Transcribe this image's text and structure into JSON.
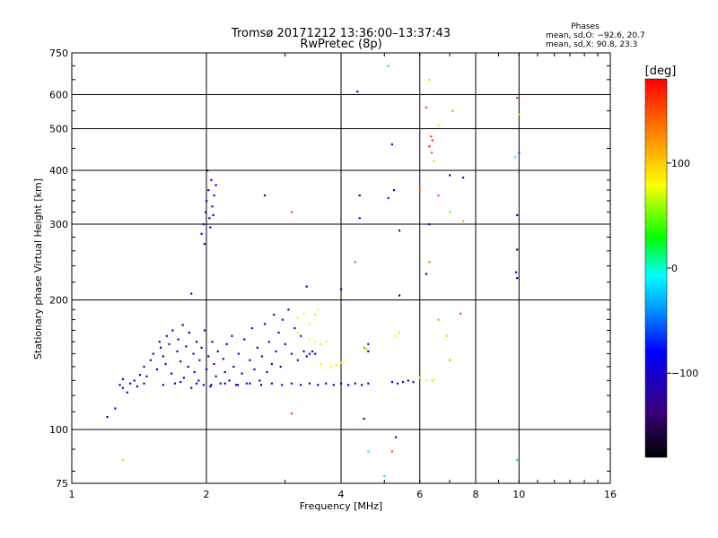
{
  "chart_data": {
    "type": "scatter",
    "title": "Tromsø 20171212 13:36:00–13:37:43",
    "subtitle": "RwPretec (8p)",
    "xlabel": "Frequency [MHz]",
    "ylabel": "Stationary phase Virtual Height [km]",
    "x_scale": "log",
    "y_scale": "log",
    "xlim": [
      1,
      16
    ],
    "ylim": [
      75,
      750
    ],
    "x_ticks": [
      1,
      2,
      4,
      6,
      8,
      10,
      16
    ],
    "x_tick_labels": [
      "1",
      "2",
      "4",
      "6",
      "8",
      "10",
      "16"
    ],
    "y_ticks": [
      75,
      100,
      200,
      300,
      400,
      500,
      600,
      750
    ],
    "y_tick_labels": [
      "75",
      "100",
      "200",
      "300",
      "400",
      "500",
      "600",
      "750"
    ],
    "grid": true,
    "phase_info": {
      "heading": "Phases",
      "line1": "mean, sd,O: −92.6, 20.7",
      "line2": "mean, sd,X:  90.8, 23.3"
    },
    "colorbar": {
      "label": "[deg]",
      "range": [
        -180,
        180
      ],
      "ticks": [
        100,
        0,
        -100
      ],
      "tick_labels": [
        "100",
        "0",
        "−100"
      ]
    },
    "colormap_stops": [
      "#000000",
      "#3a007a",
      "#0000ff",
      "#00a0ff",
      "#00ffff",
      "#00ff00",
      "#ffff00",
      "#ff8000",
      "#ff0000"
    ],
    "points": [
      [
        1.28,
        127,
        -110
      ],
      [
        1.3,
        125,
        -100
      ],
      [
        1.33,
        122,
        -95
      ],
      [
        1.35,
        128,
        -105
      ],
      [
        1.38,
        130,
        -90
      ],
      [
        1.4,
        126,
        -110
      ],
      [
        1.42,
        134,
        -100
      ],
      [
        1.45,
        140,
        -95
      ],
      [
        1.47,
        133,
        -105
      ],
      [
        1.5,
        145,
        -100
      ],
      [
        1.52,
        150,
        -110
      ],
      [
        1.55,
        138,
        -95
      ],
      [
        1.57,
        160,
        -100
      ],
      [
        1.58,
        155,
        -105
      ],
      [
        1.6,
        148,
        -115
      ],
      [
        1.62,
        142,
        -95
      ],
      [
        1.63,
        165,
        -100
      ],
      [
        1.65,
        158,
        -90
      ],
      [
        1.67,
        135,
        -110
      ],
      [
        1.68,
        170,
        -100
      ],
      [
        1.7,
        128,
        -95
      ],
      [
        1.72,
        152,
        -105
      ],
      [
        1.73,
        162,
        -100
      ],
      [
        1.75,
        144,
        -110
      ],
      [
        1.77,
        175,
        -95
      ],
      [
        1.78,
        132,
        -100
      ],
      [
        1.8,
        156,
        -105
      ],
      [
        1.82,
        140,
        -95
      ],
      [
        1.83,
        168,
        -100
      ],
      [
        1.85,
        125,
        -110
      ],
      [
        1.87,
        150,
        -100
      ],
      [
        1.88,
        136,
        -95
      ],
      [
        1.9,
        160,
        -105
      ],
      [
        1.92,
        130,
        -100
      ],
      [
        1.93,
        145,
        -110
      ],
      [
        1.95,
        155,
        -95
      ],
      [
        1.97,
        127,
        -100
      ],
      [
        1.98,
        170,
        -105
      ],
      [
        2.0,
        138,
        -95
      ],
      [
        2.02,
        148,
        -100
      ],
      [
        2.04,
        126,
        -110
      ],
      [
        2.06,
        160,
        -100
      ],
      [
        2.08,
        142,
        -95
      ],
      [
        2.1,
        133,
        -105
      ],
      [
        2.12,
        152,
        -100
      ],
      [
        2.15,
        128,
        -110
      ],
      [
        2.18,
        146,
        -95
      ],
      [
        2.2,
        136,
        -100
      ],
      [
        2.22,
        158,
        -105
      ],
      [
        2.25,
        130,
        -100
      ],
      [
        2.28,
        165,
        -95
      ],
      [
        2.3,
        140,
        -110
      ],
      [
        2.33,
        127,
        -100
      ],
      [
        2.36,
        150,
        -95
      ],
      [
        2.4,
        135,
        -105
      ],
      [
        2.43,
        162,
        -100
      ],
      [
        2.46,
        128,
        -95
      ],
      [
        2.5,
        145,
        -110
      ],
      [
        2.53,
        172,
        -100
      ],
      [
        2.56,
        138,
        -95
      ],
      [
        2.6,
        155,
        -105
      ],
      [
        2.63,
        130,
        -100
      ],
      [
        2.66,
        148,
        -95
      ],
      [
        2.7,
        176,
        -110
      ],
      [
        2.73,
        136,
        -100
      ],
      [
        2.76,
        160,
        -95
      ],
      [
        2.8,
        142,
        -105
      ],
      [
        2.83,
        185,
        -100
      ],
      [
        2.86,
        152,
        -95
      ],
      [
        2.9,
        168,
        -110
      ],
      [
        2.93,
        140,
        -100
      ],
      [
        2.96,
        180,
        -95
      ],
      [
        3.0,
        158,
        -105
      ],
      [
        3.05,
        190,
        -100
      ],
      [
        3.1,
        150,
        -95
      ],
      [
        3.15,
        172,
        -110
      ],
      [
        3.2,
        145,
        -100
      ],
      [
        3.25,
        165,
        -95
      ],
      [
        3.3,
        152,
        -105
      ],
      [
        3.35,
        148,
        -100
      ],
      [
        3.4,
        150,
        -95
      ],
      [
        3.45,
        152,
        -110
      ],
      [
        3.5,
        150,
        -100
      ],
      [
        1.3,
        131,
        -80
      ],
      [
        1.45,
        128,
        -85
      ],
      [
        1.6,
        127,
        -80
      ],
      [
        1.75,
        129,
        -85
      ],
      [
        1.9,
        128,
        -80
      ],
      [
        2.05,
        127,
        -85
      ],
      [
        2.2,
        128,
        -80
      ],
      [
        2.35,
        127,
        -85
      ],
      [
        2.5,
        128,
        -80
      ],
      [
        2.65,
        127,
        -85
      ],
      [
        2.8,
        128,
        -80
      ],
      [
        2.95,
        127,
        -85
      ],
      [
        3.1,
        128,
        -80
      ],
      [
        3.25,
        127,
        -85
      ],
      [
        3.4,
        128,
        -80
      ],
      [
        3.55,
        127,
        -85
      ],
      [
        3.7,
        128,
        -80
      ],
      [
        3.85,
        127,
        -85
      ],
      [
        4.0,
        128,
        -80
      ],
      [
        4.15,
        127,
        -85
      ],
      [
        4.3,
        128,
        -80
      ],
      [
        4.45,
        127,
        -85
      ],
      [
        4.6,
        128,
        -80
      ],
      [
        5.2,
        129,
        -85
      ],
      [
        5.35,
        128,
        -80
      ],
      [
        5.5,
        129,
        -85
      ],
      [
        5.65,
        130,
        -80
      ],
      [
        5.8,
        129,
        -75
      ],
      [
        1.95,
        285,
        -95
      ],
      [
        1.97,
        300,
        -100
      ],
      [
        1.99,
        320,
        -105
      ],
      [
        2.0,
        340,
        -95
      ],
      [
        2.02,
        360,
        -100
      ],
      [
        2.03,
        310,
        -105
      ],
      [
        2.05,
        380,
        -95
      ],
      [
        2.06,
        330,
        -100
      ],
      [
        2.08,
        350,
        -110
      ],
      [
        2.1,
        370,
        -95
      ],
      [
        1.98,
        270,
        -100
      ],
      [
        2.01,
        400,
        -105
      ],
      [
        2.04,
        295,
        -95
      ],
      [
        2.07,
        315,
        -100
      ],
      [
        3.2,
        182,
        70
      ],
      [
        3.3,
        186,
        75
      ],
      [
        3.4,
        176,
        80
      ],
      [
        3.5,
        185,
        70
      ],
      [
        3.55,
        190,
        75
      ],
      [
        3.2,
        168,
        80
      ],
      [
        3.4,
        162,
        85
      ],
      [
        3.5,
        160,
        80
      ],
      [
        3.6,
        158,
        70
      ],
      [
        3.7,
        160,
        75
      ],
      [
        3.6,
        142,
        75
      ],
      [
        3.8,
        140,
        80
      ],
      [
        3.9,
        141,
        70
      ],
      [
        4.0,
        143,
        75
      ],
      [
        4.1,
        144,
        80
      ],
      [
        4.5,
        155,
        30
      ],
      [
        4.55,
        154,
        110
      ],
      [
        4.6,
        152,
        -90
      ],
      [
        4.6,
        158,
        -85
      ],
      [
        5.3,
        165,
        80
      ],
      [
        5.4,
        168,
        70
      ],
      [
        6.0,
        132,
        80
      ],
      [
        6.2,
        130,
        75
      ],
      [
        6.4,
        130,
        60
      ],
      [
        6.5,
        131,
        80
      ],
      [
        4.35,
        610,
        -110
      ],
      [
        5.1,
        700,
        -20
      ],
      [
        6.3,
        650,
        100
      ],
      [
        6.2,
        560,
        150
      ],
      [
        6.6,
        510,
        90
      ],
      [
        7.1,
        550,
        120
      ],
      [
        9.9,
        590,
        160
      ],
      [
        10.0,
        540,
        110
      ],
      [
        6.35,
        480,
        150
      ],
      [
        6.4,
        470,
        160
      ],
      [
        6.3,
        455,
        170
      ],
      [
        6.38,
        440,
        140
      ],
      [
        6.45,
        420,
        90
      ],
      [
        9.8,
        430,
        -10
      ],
      [
        10.0,
        440,
        -60
      ],
      [
        5.2,
        460,
        -100
      ],
      [
        7.0,
        390,
        -110
      ],
      [
        7.5,
        385,
        -90
      ],
      [
        6.0,
        360,
        140
      ],
      [
        6.6,
        350,
        150
      ],
      [
        7.0,
        320,
        50
      ],
      [
        7.5,
        305,
        120
      ],
      [
        9.9,
        315,
        -100
      ],
      [
        4.4,
        350,
        -80
      ],
      [
        4.4,
        310,
        -90
      ],
      [
        5.1,
        345,
        -70
      ],
      [
        5.25,
        360,
        -100
      ],
      [
        6.3,
        300,
        -110
      ],
      [
        2.7,
        350,
        -100
      ],
      [
        3.1,
        320,
        150
      ],
      [
        5.4,
        290,
        -100
      ],
      [
        4.3,
        245,
        140
      ],
      [
        6.3,
        245,
        130
      ],
      [
        6.2,
        230,
        -110
      ],
      [
        9.9,
        262,
        -100
      ],
      [
        9.85,
        232,
        -100
      ],
      [
        9.9,
        225,
        -110
      ],
      [
        3.35,
        215,
        -120
      ],
      [
        4.0,
        212,
        -100
      ],
      [
        5.4,
        205,
        -110
      ],
      [
        1.85,
        207,
        -100
      ],
      [
        7.4,
        186,
        150
      ],
      [
        6.6,
        180,
        120
      ],
      [
        6.9,
        165,
        100
      ],
      [
        7.0,
        145,
        120
      ],
      [
        1.2,
        107,
        -110
      ],
      [
        1.25,
        112,
        -100
      ],
      [
        1.3,
        85,
        100
      ],
      [
        3.1,
        109,
        150
      ],
      [
        4.5,
        106,
        -100
      ],
      [
        4.6,
        89,
        -10
      ],
      [
        5.3,
        96,
        -100
      ],
      [
        5.2,
        89,
        150
      ],
      [
        9.9,
        85,
        -20
      ],
      [
        5.0,
        78,
        -10
      ]
    ]
  }
}
